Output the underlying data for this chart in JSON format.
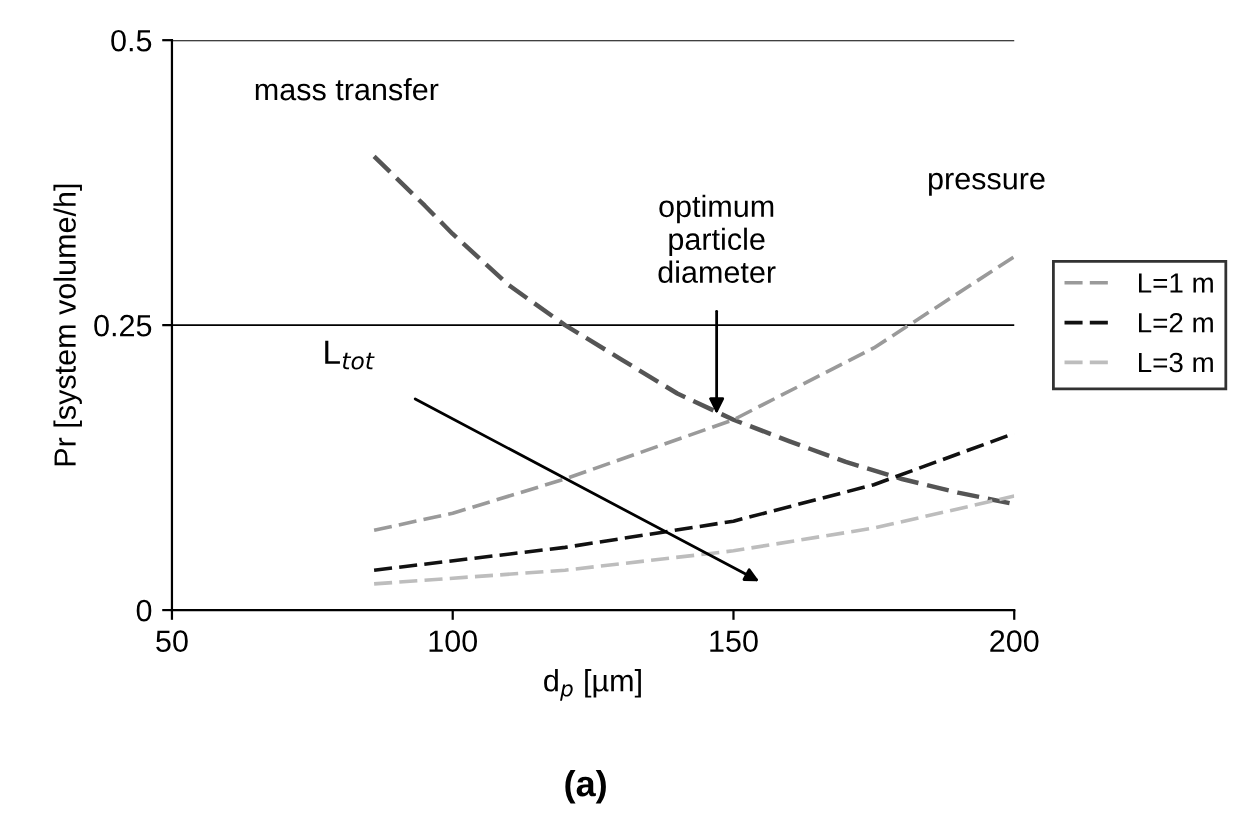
{
  "chart_data": {
    "type": "line",
    "xlabel": "d$_{p}$ [µm]",
    "ylabel": "Pr [system volume/h]",
    "xlim": [
      50,
      200
    ],
    "xticks": [
      50,
      100,
      150,
      200
    ],
    "ylim": [
      0,
      0.5
    ],
    "yticks": [
      0,
      0.25,
      0.5
    ],
    "grid": "y",
    "legend": "right",
    "line_style": "dashed",
    "marker": "none",
    "series": [
      {
        "color": "#555555",
        "x": [
          86,
          95,
          100,
          110,
          120,
          130,
          140,
          150,
          160,
          170,
          180,
          190,
          200
        ],
        "values": [
          0.398,
          0.355,
          0.33,
          0.285,
          0.25,
          0.22,
          0.19,
          0.167,
          0.148,
          0.13,
          0.115,
          0.103,
          0.093
        ]
      },
      {
        "name": "L=1 m",
        "color": "#9a9a9a",
        "x": [
          86,
          100,
          120,
          150,
          175,
          200
        ],
        "values": [
          0.07,
          0.085,
          0.115,
          0.167,
          0.23,
          0.31
        ]
      },
      {
        "name": "L=2 m",
        "color": "#111111",
        "x": [
          86,
          120,
          150,
          175,
          200
        ],
        "values": [
          0.035,
          0.055,
          0.078,
          0.11,
          0.155
        ]
      },
      {
        "name": "L=3 m",
        "color": "#bdbdbd",
        "x": [
          86,
          120,
          150,
          175,
          200
        ],
        "values": [
          0.023,
          0.035,
          0.052,
          0.072,
          0.1
        ]
      }
    ],
    "annotations": [
      {
        "text": "mass transfer",
        "x": 86,
        "y": 0.398
      },
      {
        "text": "optimum\nparticle\ndiameter",
        "x": 147,
        "y": 0.172
      },
      {
        "text": "pressure",
        "x": 200,
        "y": 0.31
      },
      "L$_{tot}$",
      "(a)"
    ]
  }
}
